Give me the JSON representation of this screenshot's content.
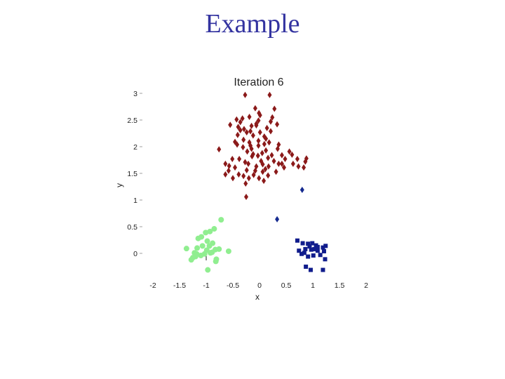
{
  "slide": {
    "title": "Example"
  },
  "chart_data": {
    "type": "scatter",
    "title": "Iteration 6",
    "xlabel": "x",
    "ylabel": "y",
    "xlim": [
      -2,
      2
    ],
    "ylim": [
      -0.25,
      3
    ],
    "xticks": [
      "-2",
      "-1.5",
      "-1",
      "-0.5",
      "0",
      "0.5",
      "1",
      "1.5",
      "2"
    ],
    "yticks": [
      "0",
      "0.5",
      "1",
      "1.5",
      "2",
      "2.5",
      "3"
    ],
    "grid": false,
    "series": [
      {
        "marker": "diamond",
        "color": "#8b1a1a",
        "points": [
          [
            -0.27,
            2.97
          ],
          [
            0.19,
            2.97
          ],
          [
            -0.08,
            2.72
          ],
          [
            -0.06,
            2.4
          ],
          [
            -0.29,
            2.33
          ],
          [
            -0.17,
            2.29
          ],
          [
            -0.24,
            2.27
          ],
          [
            -0.4,
            2.37
          ],
          [
            -0.36,
            2.31
          ],
          [
            -0.12,
            2.21
          ],
          [
            0.21,
            2.29
          ],
          [
            0.09,
            2.19
          ],
          [
            0.14,
            2.35
          ],
          [
            0.33,
            2.42
          ],
          [
            -0.43,
            2.51
          ],
          [
            -0.32,
            2.53
          ],
          [
            -0.06,
            2.43
          ],
          [
            -0.02,
            2.49
          ],
          [
            -0.15,
            2.39
          ],
          [
            -0.19,
            2.56
          ],
          [
            -0.36,
            2.46
          ],
          [
            -0.01,
            2.63
          ],
          [
            0.01,
            2.59
          ],
          [
            0.21,
            2.47
          ],
          [
            0.24,
            2.55
          ],
          [
            0.28,
            2.71
          ],
          [
            -0.55,
            2.41
          ],
          [
            -0.19,
            2.08
          ],
          [
            -0.17,
            2.02
          ],
          [
            -0.02,
            2.11
          ],
          [
            0.12,
            2.15
          ],
          [
            0.36,
            2.04
          ],
          [
            0.12,
            1.93
          ],
          [
            -0.12,
            1.86
          ],
          [
            -0.76,
            1.95
          ],
          [
            -0.42,
            2.04
          ],
          [
            -0.31,
            1.99
          ],
          [
            -0.23,
            1.91
          ],
          [
            -0.03,
            1.83
          ],
          [
            0.16,
            1.79
          ],
          [
            -0.14,
            1.82
          ],
          [
            0.05,
            1.88
          ],
          [
            0.27,
            1.73
          ],
          [
            0.23,
            1.84
          ],
          [
            0.42,
            1.68
          ],
          [
            0.48,
            1.77
          ],
          [
            0.56,
            1.91
          ],
          [
            0.61,
            1.85
          ],
          [
            0.88,
            1.78
          ],
          [
            0.86,
            1.72
          ],
          [
            0.83,
            1.61
          ],
          [
            -0.38,
            1.77
          ],
          [
            -0.27,
            1.71
          ],
          [
            -0.21,
            1.68
          ],
          [
            -0.06,
            1.63
          ],
          [
            0.06,
            1.67
          ],
          [
            0.11,
            1.58
          ],
          [
            0.17,
            1.63
          ],
          [
            0.31,
            1.53
          ],
          [
            0.36,
            1.68
          ],
          [
            0.06,
            1.53
          ],
          [
            -0.08,
            1.55
          ],
          [
            -0.24,
            1.56
          ],
          [
            -0.46,
            1.61
          ],
          [
            -0.51,
            1.77
          ],
          [
            -0.64,
            1.68
          ],
          [
            -0.58,
            1.55
          ],
          [
            -0.39,
            1.48
          ],
          [
            -0.3,
            1.45
          ],
          [
            -0.2,
            1.41
          ],
          [
            -0.11,
            1.47
          ],
          [
            -0.01,
            1.41
          ],
          [
            0.16,
            1.46
          ],
          [
            -0.5,
            1.41
          ],
          [
            -0.64,
            1.48
          ],
          [
            0.08,
            1.36
          ],
          [
            -0.26,
            1.31
          ],
          [
            -0.25,
            1.06
          ],
          [
            0.73,
            1.63
          ],
          [
            0.71,
            1.77
          ],
          [
            -0.46,
            2.09
          ],
          [
            -0.02,
            2.02
          ],
          [
            0.09,
            2.05
          ],
          [
            -0.57,
            1.64
          ],
          [
            0.42,
            1.84
          ],
          [
            -0.15,
            1.96
          ],
          [
            0.03,
            1.73
          ],
          [
            0.18,
            2.08
          ],
          [
            0.34,
            1.96
          ],
          [
            -0.41,
            2.22
          ],
          [
            0.01,
            2.27
          ],
          [
            -0.3,
            2.13
          ],
          [
            0.63,
            1.68
          ],
          [
            0.46,
            1.61
          ]
        ]
      },
      {
        "marker": "diamond",
        "color": "#152a8f",
        "points": [
          [
            0.8,
            1.19
          ],
          [
            0.33,
            0.64
          ]
        ]
      },
      {
        "marker": "circle",
        "color": "#90ee90",
        "points": [
          [
            -0.72,
            0.63
          ],
          [
            -1.01,
            0.39
          ],
          [
            -0.93,
            0.41
          ],
          [
            -0.85,
            0.46
          ],
          [
            -1.15,
            0.28
          ],
          [
            -0.88,
            0.19
          ],
          [
            -1.37,
            0.09
          ],
          [
            -1.17,
            0.1
          ],
          [
            -1.07,
            0.14
          ],
          [
            -0.99,
            0.06
          ],
          [
            -0.94,
            0.14
          ],
          [
            -0.83,
            0.07
          ],
          [
            -0.76,
            0.08
          ],
          [
            -0.58,
            0.04
          ],
          [
            -0.92,
            0.01
          ],
          [
            -1.03,
            -0.01
          ],
          [
            -1.1,
            -0.04
          ],
          [
            -1.2,
            -0.06
          ],
          [
            -1.25,
            -0.08
          ],
          [
            -1.28,
            -0.12
          ],
          [
            -0.81,
            -0.11
          ],
          [
            -0.82,
            -0.15
          ],
          [
            -1.18,
            -0.01
          ],
          [
            -0.97,
            -0.31
          ],
          [
            -1.22,
            0.01
          ],
          [
            -0.98,
            0.23
          ],
          [
            -1.09,
            0.31
          ],
          [
            -0.89,
            0.02
          ]
        ]
      },
      {
        "marker": "square",
        "color": "#101c8c",
        "points": [
          [
            0.71,
            0.24
          ],
          [
            0.81,
            0.19
          ],
          [
            0.91,
            0.18
          ],
          [
            0.99,
            0.19
          ],
          [
            1.06,
            0.15
          ],
          [
            0.94,
            0.13
          ],
          [
            1.09,
            0.12
          ],
          [
            0.86,
            0.08
          ],
          [
            0.97,
            0.07
          ],
          [
            1.03,
            0.08
          ],
          [
            1.09,
            0.05
          ],
          [
            0.74,
            0.05
          ],
          [
            1.19,
            0.11
          ],
          [
            1.24,
            0.14
          ],
          [
            1.21,
            0.04
          ],
          [
            1.14,
            -0.03
          ],
          [
            1.01,
            -0.04
          ],
          [
            0.91,
            -0.06
          ],
          [
            0.79,
            -0.01
          ],
          [
            0.87,
            -0.25
          ],
          [
            0.96,
            -0.31
          ],
          [
            1.19,
            -0.31
          ],
          [
            1.23,
            -0.11
          ],
          [
            0.84,
            0.01
          ]
        ]
      }
    ]
  }
}
